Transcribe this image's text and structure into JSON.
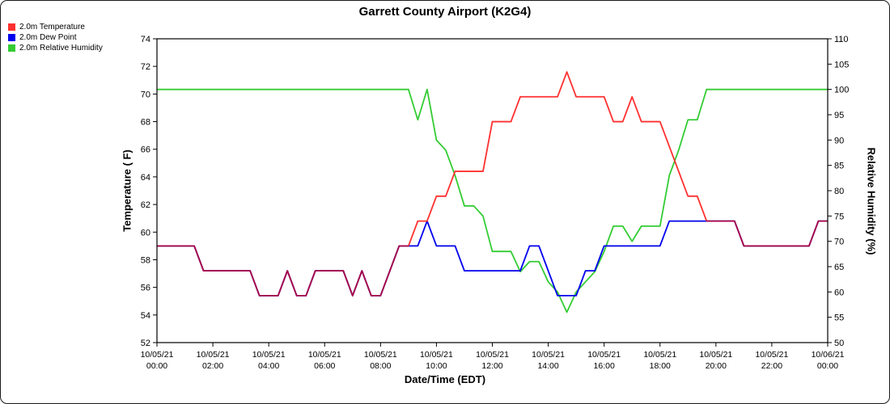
{
  "chart_data": {
    "type": "line",
    "title": "Garrett County Airport (K2G4)",
    "xlabel": "Date/Time (EDT)",
    "ylabel_left": "Temperature ( F)",
    "ylabel_right": "Relative Humidity (%)",
    "ylim_left": [
      52,
      74
    ],
    "ylim_right": [
      50,
      110
    ],
    "left_ticks": [
      74,
      72,
      70,
      68,
      66,
      64,
      62,
      60,
      58,
      56,
      54,
      52
    ],
    "right_ticks": [
      110,
      105,
      100,
      95,
      90,
      85,
      80,
      75,
      70,
      65,
      60,
      55,
      50
    ],
    "x_total_min": 1440,
    "x_start_min": 0,
    "x_step_min": 20,
    "x_ticks": [
      {
        "date": "10/05/21",
        "time": "00:00"
      },
      {
        "date": "10/05/21",
        "time": "02:00"
      },
      {
        "date": "10/05/21",
        "time": "04:00"
      },
      {
        "date": "10/05/21",
        "time": "06:00"
      },
      {
        "date": "10/05/21",
        "time": "08:00"
      },
      {
        "date": "10/05/21",
        "time": "10:00"
      },
      {
        "date": "10/05/21",
        "time": "12:00"
      },
      {
        "date": "10/05/21",
        "time": "14:00"
      },
      {
        "date": "10/05/21",
        "time": "16:00"
      },
      {
        "date": "10/05/21",
        "time": "18:00"
      },
      {
        "date": "10/05/21",
        "time": "20:00"
      },
      {
        "date": "10/05/21",
        "time": "22:00"
      },
      {
        "date": "10/06/21",
        "time": "00:00"
      }
    ],
    "overlap_color": "#a80044",
    "grid": false,
    "legend_position": "top-left",
    "series": [
      {
        "name": "2.0m Temperature",
        "axis": "left",
        "color": "#ff3030",
        "values": [
          59,
          59,
          59,
          59,
          59,
          57.2,
          57.2,
          57.2,
          57.2,
          57.2,
          57.2,
          55.4,
          55.4,
          55.4,
          57.2,
          55.4,
          55.4,
          57.2,
          57.2,
          57.2,
          57.2,
          55.4,
          57.2,
          55.4,
          55.4,
          57.2,
          59,
          59,
          60.8,
          60.8,
          62.6,
          62.6,
          64.4,
          64.4,
          64.4,
          64.4,
          68,
          68,
          68,
          69.8,
          69.8,
          69.8,
          69.8,
          69.8,
          71.6,
          69.8,
          69.8,
          69.8,
          69.8,
          68,
          68,
          69.8,
          68,
          68,
          68,
          66.2,
          64.4,
          62.6,
          62.6,
          60.8,
          60.8,
          60.8,
          60.8,
          59,
          59,
          59,
          59,
          59,
          59,
          59,
          59,
          60.8,
          60.8
        ]
      },
      {
        "name": "2.0m Dew Point",
        "axis": "left",
        "color": "#0000ee",
        "values": [
          59,
          59,
          59,
          59,
          59,
          57.2,
          57.2,
          57.2,
          57.2,
          57.2,
          57.2,
          55.4,
          55.4,
          55.4,
          57.2,
          55.4,
          55.4,
          57.2,
          57.2,
          57.2,
          57.2,
          55.4,
          57.2,
          55.4,
          55.4,
          57.2,
          59,
          59,
          59,
          60.8,
          59,
          59,
          59,
          57.2,
          57.2,
          57.2,
          57.2,
          57.2,
          57.2,
          57.2,
          59,
          59,
          57.2,
          55.4,
          55.4,
          55.4,
          57.2,
          57.2,
          59,
          59,
          59,
          59,
          59,
          59,
          59,
          60.8,
          60.8,
          60.8,
          60.8,
          60.8,
          60.8,
          60.8,
          60.8,
          59,
          59,
          59,
          59,
          59,
          59,
          59,
          59,
          60.8,
          60.8
        ]
      },
      {
        "name": "2.0m Relative Humidity",
        "axis": "right",
        "color": "#33cc33",
        "values": [
          100,
          100,
          100,
          100,
          100,
          100,
          100,
          100,
          100,
          100,
          100,
          100,
          100,
          100,
          100,
          100,
          100,
          100,
          100,
          100,
          100,
          100,
          100,
          100,
          100,
          100,
          100,
          100,
          94,
          100,
          90,
          88,
          83,
          77,
          77,
          75,
          68,
          68,
          68,
          64,
          66,
          66,
          62,
          60,
          56,
          60,
          62,
          64,
          68,
          73,
          73,
          70,
          73,
          73,
          73,
          83,
          88,
          94,
          94,
          100,
          100,
          100,
          100,
          100,
          100,
          100,
          100,
          100,
          100,
          100,
          100,
          100,
          100
        ]
      }
    ]
  }
}
